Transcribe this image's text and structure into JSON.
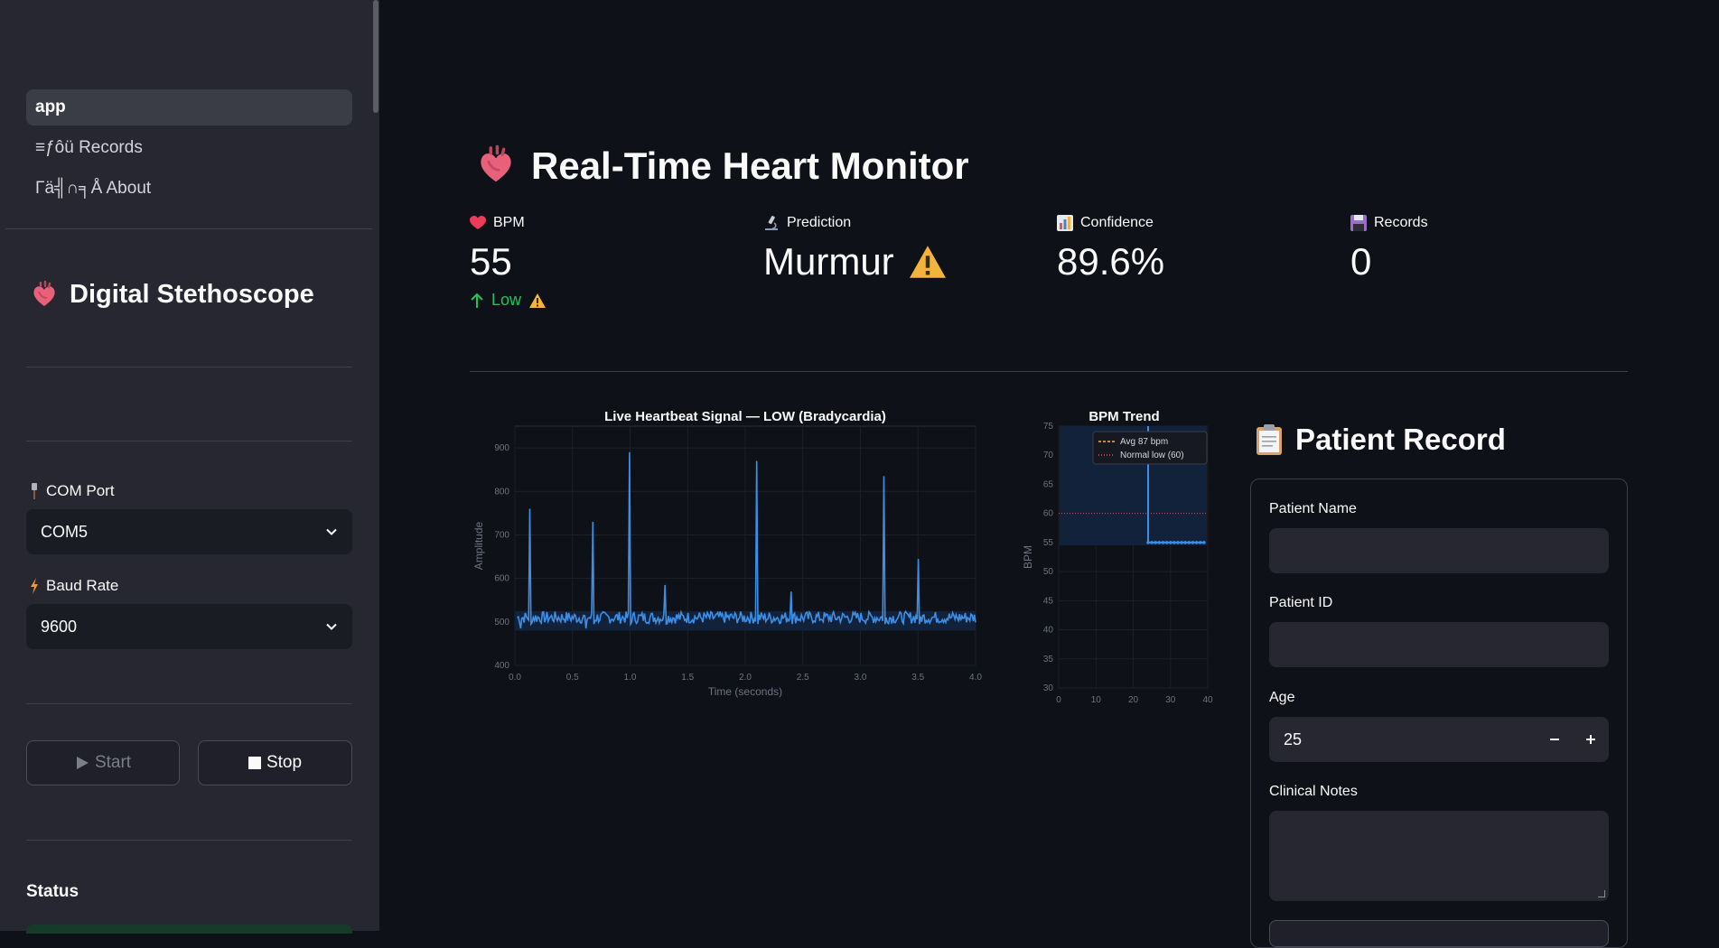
{
  "sidebar": {
    "nav": [
      {
        "label": "app"
      },
      {
        "label": "≡ƒôü Records"
      },
      {
        "label": "Γä╣∩╕Å About"
      }
    ],
    "title": "Digital Stethoscope",
    "com_port": {
      "label": "COM Port",
      "value": "COM5"
    },
    "baud_rate": {
      "label": "Baud Rate",
      "value": "9600"
    },
    "start_label": "Start",
    "stop_label": "Stop",
    "status_heading": "Status"
  },
  "main": {
    "title": "Real-Time Heart Monitor",
    "metrics": [
      {
        "label": "BPM",
        "value": "55",
        "delta": "Low"
      },
      {
        "label": "Prediction",
        "value": "Murmur"
      },
      {
        "label": "Confidence",
        "value": "89.6%"
      },
      {
        "label": "Records",
        "value": "0"
      }
    ],
    "patient_record": {
      "title": "Patient Record",
      "name_label": "Patient Name",
      "name_value": "",
      "id_label": "Patient ID",
      "id_value": "",
      "age_label": "Age",
      "age_value": "25",
      "notes_label": "Clinical Notes",
      "notes_value": ""
    }
  },
  "colors": {
    "signal": "#3d8fe6",
    "accent_green": "#21c45a",
    "warning": "#f2b43b"
  },
  "chart_data": [
    {
      "type": "line",
      "title": "Live Heartbeat Signal — LOW (Bradycardia)",
      "xlabel": "Time (seconds)",
      "ylabel": "Amplitude",
      "xlim": [
        0,
        4
      ],
      "ylim": [
        400,
        950
      ],
      "xticks": [
        "0.0",
        "0.5",
        "1.0",
        "1.5",
        "2.0",
        "2.5",
        "3.0",
        "3.5",
        "4.0"
      ],
      "yticks": [
        "400",
        "500",
        "600",
        "700",
        "800",
        "900"
      ],
      "baseline": 510,
      "spikes": [
        {
          "x": 0.13,
          "y": 760
        },
        {
          "x": 0.68,
          "y": 730
        },
        {
          "x": 1.0,
          "y": 890
        },
        {
          "x": 1.3,
          "y": 585
        },
        {
          "x": 2.1,
          "y": 870
        },
        {
          "x": 2.4,
          "y": 570
        },
        {
          "x": 3.2,
          "y": 835
        },
        {
          "x": 3.5,
          "y": 645
        }
      ],
      "dips": [
        {
          "x": 0.05,
          "y": 485
        },
        {
          "x": 0.62,
          "y": 485
        }
      ]
    },
    {
      "type": "line",
      "title": "BPM Trend",
      "xlabel": "",
      "ylabel": "BPM",
      "xlim": [
        0,
        40
      ],
      "ylim": [
        30,
        75
      ],
      "xticks": [
        "0",
        "10",
        "20",
        "30",
        "40"
      ],
      "yticks": [
        "30",
        "35",
        "40",
        "45",
        "50",
        "55",
        "60",
        "65",
        "70",
        "75"
      ],
      "series": [
        {
          "x": [
            24,
            24,
            25,
            26,
            27,
            28,
            29,
            30,
            31,
            32,
            33,
            34,
            35,
            36,
            37,
            38,
            39
          ],
          "y": [
            75,
            55,
            55,
            55,
            55,
            55,
            55,
            55,
            55,
            55,
            55,
            55,
            55,
            55,
            55,
            55,
            55
          ]
        }
      ],
      "reference_lines": [
        {
          "name": "Avg 87 bpm",
          "y": 87,
          "style": "dashed",
          "color": "#f2b43b"
        },
        {
          "name": "Normal low (60)",
          "y": 60,
          "style": "dotted",
          "color": "#d9534f"
        }
      ],
      "legend": "top-right"
    }
  ]
}
